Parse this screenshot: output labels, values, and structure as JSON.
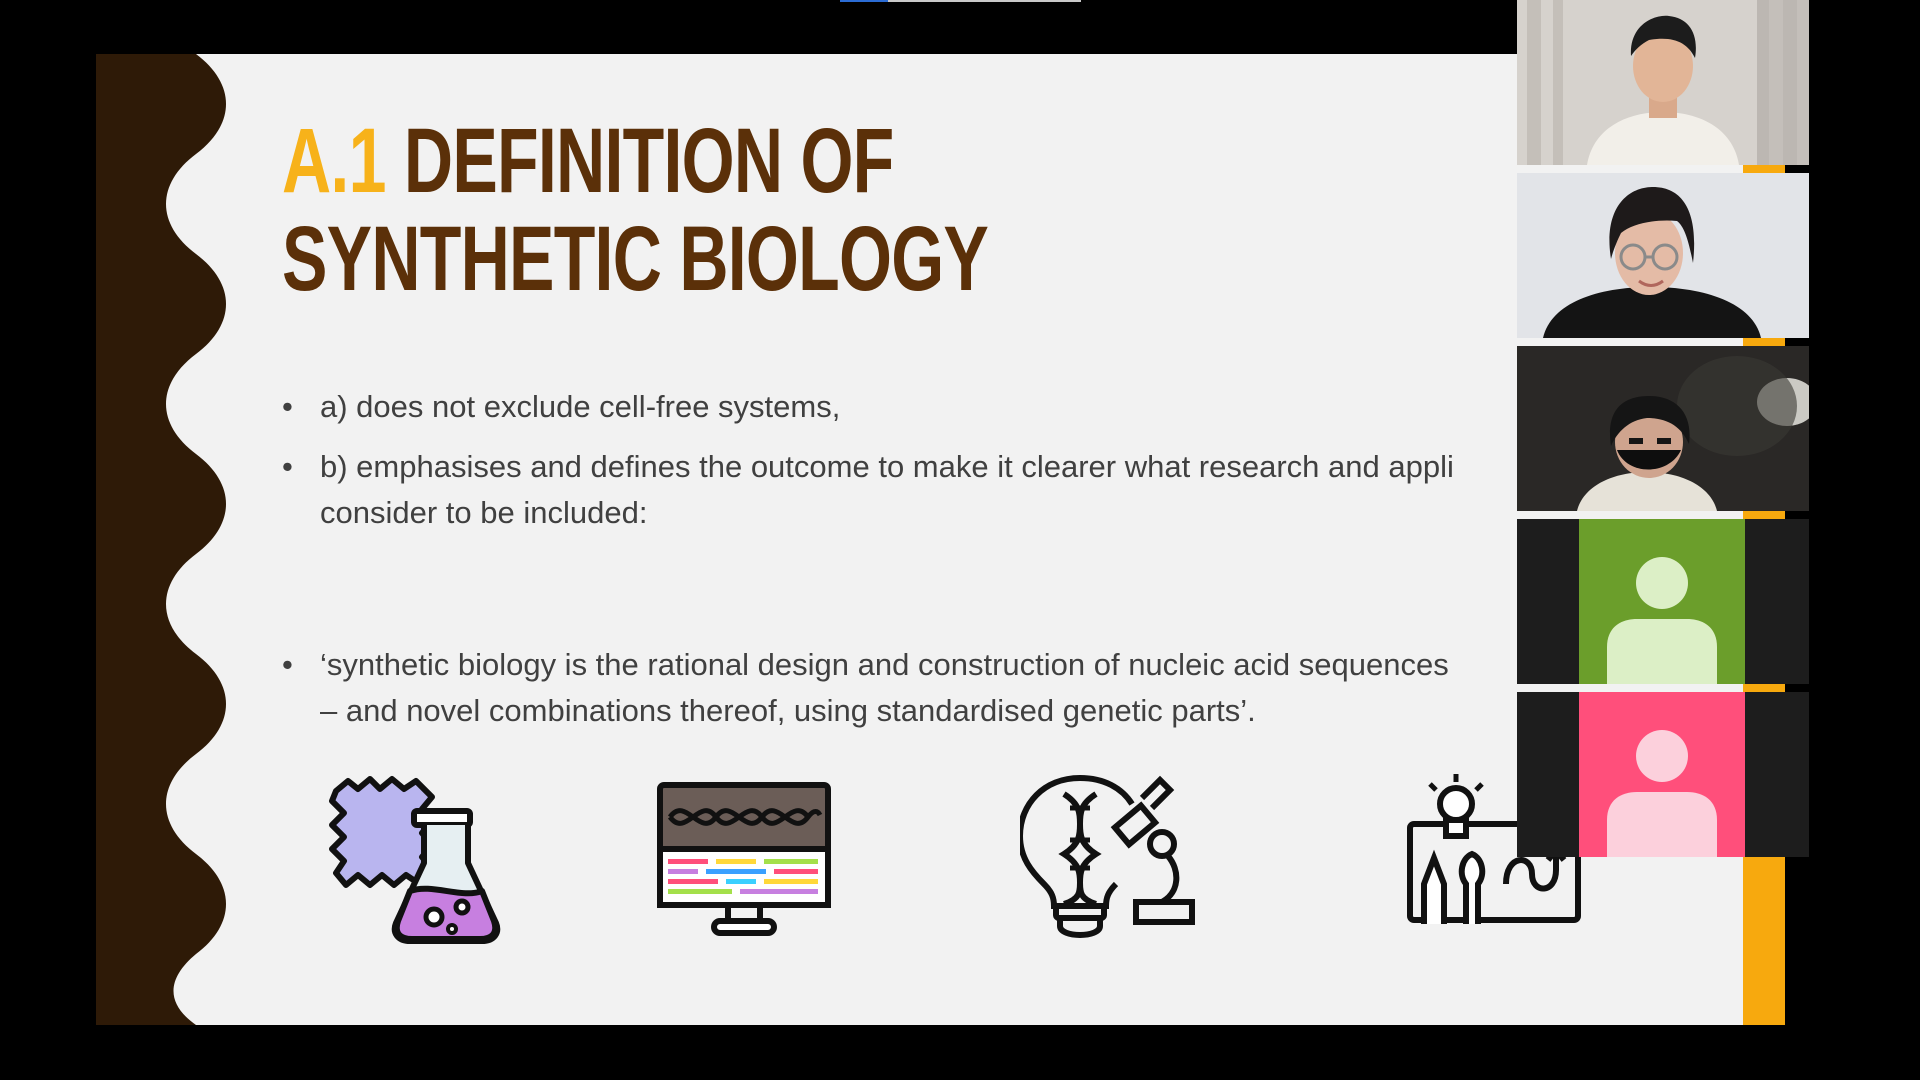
{
  "slide": {
    "title_number": "A.1",
    "title_line1": "DEFINITION OF",
    "title_line2": "SYNTHETIC BIOLOGY",
    "bullets": [
      "a) does not exclude cell-free systems,",
      "b) emphasises and defines the outcome to make it clearer what research and appli",
      "consider to be included:",
      "‘synthetic biology is the rational design and construction of nucleic acid sequences",
      "– and novel combinations thereof, using standardised genetic parts’."
    ],
    "icons": [
      "lab-flask-icon",
      "dna-monitor-icon",
      "dna-lightbulb-microscope-icon",
      "creative-tools-board-icon"
    ],
    "colors": {
      "title": "#5b3009",
      "title_number": "#f7b21a",
      "accent_right": "#f7a90e",
      "left_band": "#2e1a07",
      "text": "#404040"
    }
  },
  "participants": [
    {
      "tile": "participant-1",
      "type": "video"
    },
    {
      "tile": "participant-2",
      "type": "video"
    },
    {
      "tile": "participant-3",
      "type": "video"
    },
    {
      "tile": "participant-4",
      "type": "avatar",
      "color": "#6b9e2b"
    },
    {
      "tile": "participant-5",
      "type": "avatar",
      "color": "#ff4f7b"
    }
  ]
}
